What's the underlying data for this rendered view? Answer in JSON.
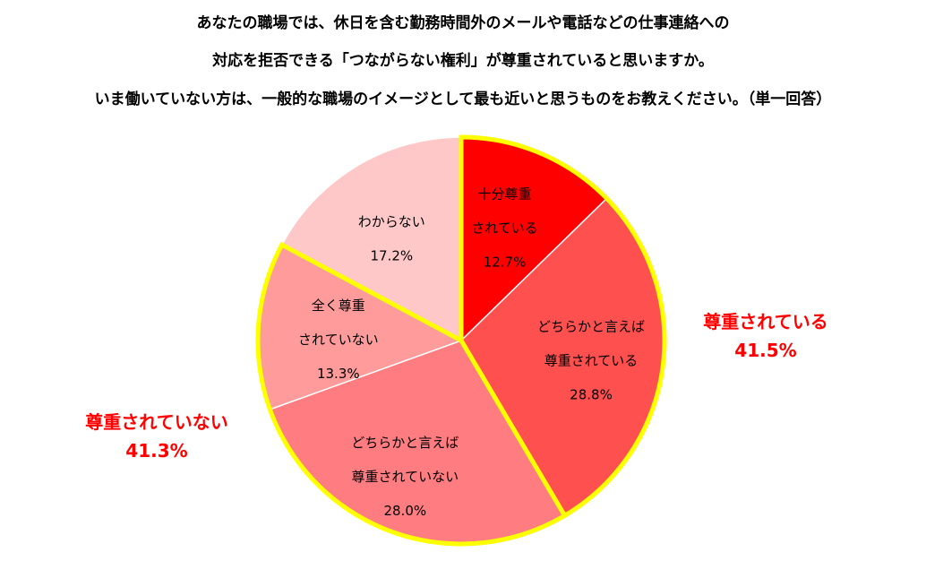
{
  "title": {
    "line1": "あなたの職場では、休日を含む勤務時間外のメールや電話などの仕事連絡への",
    "line2": "対応を拒否できる「つながらない権利」が尊重されていると思いますか。",
    "line3": "いま働いていない方は、一般的な職場のイメージとして最も近いと思うものをお教えください。（単一回答）"
  },
  "groups": {
    "respected": {
      "label": "尊重されている",
      "value": "41.5%"
    },
    "not_respected": {
      "label": "尊重されていない",
      "value": "41.3%"
    }
  },
  "chart_data": {
    "type": "pie",
    "title": "あなたの職場では、休日を含む勤務時間外のメールや電話などの仕事連絡への対応を拒否できる「つながらない権利」が尊重されていると思いますか。いま働いていない方は、一般的な職場のイメージとして最も近いと思うものをお教えください。（単一回答）",
    "start": "12 o'clock, clockwise",
    "slices": [
      {
        "label": [
          "十分尊重",
          "されている"
        ],
        "value": 12.7,
        "value_text": "12.7%",
        "color": "#ff0000",
        "text_color": "#ffffff",
        "highlight": true
      },
      {
        "label": [
          "どちらかと言えば",
          "尊重されている"
        ],
        "value": 28.8,
        "value_text": "28.8%",
        "color": "#ff5050",
        "text_color": "#000000",
        "highlight": true
      },
      {
        "label": [
          "どちらかと言えば",
          "尊重されていない"
        ],
        "value": 28.0,
        "value_text": "28.0%",
        "color": "#ff7c80",
        "text_color": "#000000",
        "highlight": true
      },
      {
        "label": [
          "全く尊重",
          "されていない"
        ],
        "value": 13.3,
        "value_text": "13.3%",
        "color": "#ff9b9b",
        "text_color": "#000000",
        "highlight": true
      },
      {
        "label": [
          "わからない"
        ],
        "value": 17.2,
        "value_text": "17.2%",
        "color": "#ffc8c8",
        "text_color": "#000000",
        "highlight": false
      }
    ],
    "group_outline_color": "#ffff00"
  }
}
